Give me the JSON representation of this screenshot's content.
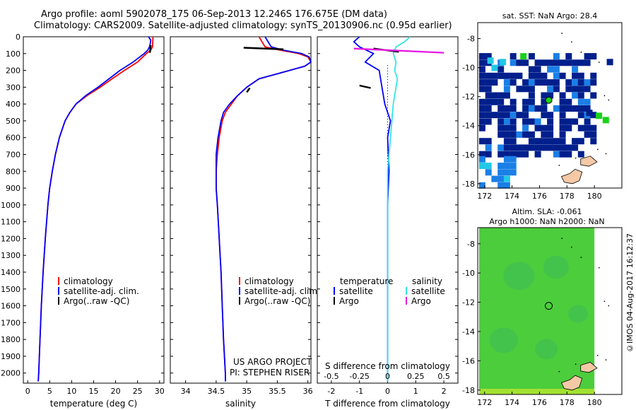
{
  "header": {
    "line1": "Argo profile: aoml 5902078_175 06-Sep-2013 12.246S 176.675E (DM data)",
    "line2": "Climatology: CARS2009. Satellite-adjusted climatology: synTS_20130906.nc (0.95d earlier)"
  },
  "credit": "©IMOS 04-Aug-2017 16:12:37",
  "colors": {
    "climatology": "#ff0000",
    "satellite": "#0000ff",
    "argo": "#000000",
    "sal_satellite": "#33e6e6",
    "sal_argo": "#e619e6",
    "sst_dark": "#001f8c",
    "sst_mid": "#1a7fe6",
    "sst_light": "#22c8e6",
    "sst_green": "#19d219",
    "land": "#f5c8a6",
    "sla_green": "#4ccd3c"
  },
  "chart_data": [
    {
      "id": "temperature",
      "type": "line",
      "xlabel": "temperature (deg C)",
      "ylabel": "",
      "xlim": [
        -1,
        31
      ],
      "ylim": [
        0,
        2060
      ],
      "xticks": [
        0,
        5,
        10,
        15,
        20,
        25,
        30
      ],
      "yticks": [
        0,
        100,
        200,
        300,
        400,
        500,
        600,
        700,
        800,
        900,
        1000,
        1100,
        1200,
        1300,
        1400,
        1500,
        1600,
        1700,
        1800,
        1900,
        2000
      ],
      "legend": [
        "climatology",
        "satellite-adj. clim.",
        "Argo(..raw -QC)"
      ],
      "series": [
        {
          "name": "climatology",
          "depth": [
            0,
            60,
            80,
            100,
            150,
            200,
            250,
            300,
            350,
            400,
            450,
            500,
            600,
            700,
            800,
            900,
            1000,
            1200,
            1400,
            1600,
            1800,
            2000,
            2050
          ],
          "values": [
            28.5,
            28.4,
            28.0,
            27.0,
            25.0,
            22.0,
            19.2,
            16.5,
            13.5,
            11.0,
            9.6,
            8.5,
            7.2,
            6.3,
            5.6,
            5.0,
            4.6,
            4.0,
            3.5,
            3.1,
            2.8,
            2.5,
            2.4
          ]
        },
        {
          "name": "satellite-adj. clim.",
          "depth": [
            0,
            20,
            40,
            60,
            80,
            100,
            150,
            200,
            250,
            300,
            350,
            400,
            450,
            500,
            600,
            700,
            800,
            900,
            1000,
            1200,
            1400,
            1600,
            1800,
            2000,
            2050
          ],
          "values": [
            27.5,
            28.0,
            27.9,
            27.7,
            27.3,
            26.5,
            24.0,
            21.0,
            18.5,
            16.0,
            13.2,
            11.0,
            9.6,
            8.5,
            7.2,
            6.3,
            5.6,
            5.0,
            4.6,
            4.0,
            3.5,
            3.1,
            2.8,
            2.5,
            2.4
          ]
        },
        {
          "name": "Argo(..raw -QC)",
          "depth": [
            50,
            95
          ],
          "values": [
            28.0,
            27.8
          ]
        }
      ]
    },
    {
      "id": "salinity",
      "type": "line",
      "xlabel": "salinity",
      "xlim": [
        33.75,
        36.05
      ],
      "ylim": [
        0,
        2060
      ],
      "xticks": [
        34,
        34.5,
        35,
        35.5,
        36
      ],
      "legend": [
        "climatology",
        "satellite-adj. clim.",
        "Argo(..raw -QC)"
      ],
      "annotation": [
        "US ARGO PROJECT",
        "PI: STEPHEN RISER"
      ],
      "series": [
        {
          "name": "climatology",
          "depth": [
            0,
            30,
            60,
            80,
            100,
            120,
            150,
            175,
            200,
            250,
            300,
            350,
            400,
            450,
            500,
            600,
            700,
            800,
            900,
            1000,
            1200,
            1400,
            1600,
            1800,
            2000,
            2050
          ],
          "values": [
            35.2,
            35.25,
            35.3,
            35.55,
            35.85,
            36.0,
            36.05,
            35.95,
            35.7,
            35.2,
            35.0,
            34.85,
            34.75,
            34.65,
            34.6,
            34.55,
            34.52,
            34.5,
            34.5,
            34.52,
            34.55,
            34.58,
            34.6,
            34.62,
            34.65,
            34.65
          ]
        },
        {
          "name": "satellite-adj. clim.",
          "depth": [
            0,
            30,
            60,
            80,
            100,
            120,
            150,
            175,
            200,
            250,
            300,
            350,
            400,
            450,
            500,
            600,
            700,
            800,
            900,
            1000,
            1200,
            1400,
            1600,
            1800,
            2000,
            2050
          ],
          "values": [
            35.3,
            35.35,
            35.4,
            35.6,
            35.9,
            36.02,
            36.05,
            35.95,
            35.7,
            35.2,
            35.0,
            34.85,
            34.72,
            34.62,
            34.58,
            34.53,
            34.5,
            34.5,
            34.5,
            34.52,
            34.55,
            34.58,
            34.6,
            34.62,
            34.65,
            34.65
          ]
        },
        {
          "name": "Argo(..raw -QC)",
          "depth": [
            65,
            75
          ],
          "values": [
            34.95,
            35.6
          ]
        },
        {
          "name": "Argo(..raw -QC) b",
          "depth": [
            305,
            330
          ],
          "values": [
            35.05,
            35.0
          ]
        }
      ]
    },
    {
      "id": "difference",
      "type": "line",
      "xlabel": "T difference from climatology",
      "xlabel_top": "S difference from climatology",
      "xlim": [
        -2.5,
        2.5
      ],
      "ylim": [
        0,
        2060
      ],
      "xticks": [
        -2,
        -1,
        0,
        1,
        2
      ],
      "xticks_top": [
        -0.5,
        -0.25,
        0,
        0.25,
        0.5
      ],
      "xticks_top_labels": [
        "-0.5",
        "-0.25",
        "0",
        "0.25",
        "0.5"
      ],
      "legend_temperature": [
        "temperature",
        "satellite",
        "Argo"
      ],
      "legend_salinity": [
        "salinity",
        "satellite",
        "Argo"
      ],
      "series": [
        {
          "name": "T satellite",
          "depth": [
            0,
            30,
            60,
            100,
            150,
            200,
            300,
            400,
            500,
            600,
            800,
            1000,
            1500,
            2050
          ],
          "values": [
            -1.0,
            -1.2,
            -1.0,
            -0.5,
            -0.8,
            -0.3,
            -0.2,
            -0.1,
            0.1,
            0.0,
            0.05,
            0.0,
            0.0,
            0.0
          ]
        },
        {
          "name": "S satellite",
          "depth": [
            0,
            30,
            60,
            100,
            150,
            200,
            250,
            300,
            400,
            500,
            600,
            700,
            800,
            1000,
            1500,
            2050
          ],
          "values": [
            0.8,
            0.6,
            0.3,
            0.2,
            0.3,
            0.25,
            0.35,
            0.3,
            0.2,
            0.15,
            0.1,
            0.05,
            0.0,
            0.0,
            0.0,
            0.0
          ]
        },
        {
          "name": "T Argo",
          "depth": [
            70,
            90
          ],
          "values": [
            -0.5,
            0.4
          ]
        },
        {
          "name": "T Argo b",
          "depth": [
            290,
            305
          ],
          "values": [
            -1.0,
            -0.6
          ]
        },
        {
          "name": "S Argo",
          "depth": [
            70,
            95
          ],
          "values": [
            -1.2,
            2.0
          ]
        }
      ]
    },
    {
      "id": "sst_map",
      "type": "heatmap",
      "title": "sat. SST: NaN Argo: 28.4",
      "xlim": [
        171.5,
        182
      ],
      "ylim": [
        -18.3,
        -6.9
      ],
      "xticks": [
        172,
        174,
        176,
        178,
        180
      ],
      "yticks": [
        -8,
        -10,
        -12,
        -14,
        -16,
        -18
      ],
      "argo_position": [
        176.675,
        -12.246
      ]
    },
    {
      "id": "sla_map",
      "type": "heatmap",
      "title": "Altim. SLA: -0.061",
      "subtitle": "Argo h1000: NaN h2000: NaN",
      "xlim": [
        171.5,
        182
      ],
      "ylim": [
        -18.3,
        -6.9
      ],
      "xticks": [
        172,
        174,
        176,
        178,
        180
      ],
      "yticks": [
        -8,
        -10,
        -12,
        -14,
        -16,
        -18
      ],
      "argo_position": [
        176.675,
        -12.246
      ]
    }
  ]
}
